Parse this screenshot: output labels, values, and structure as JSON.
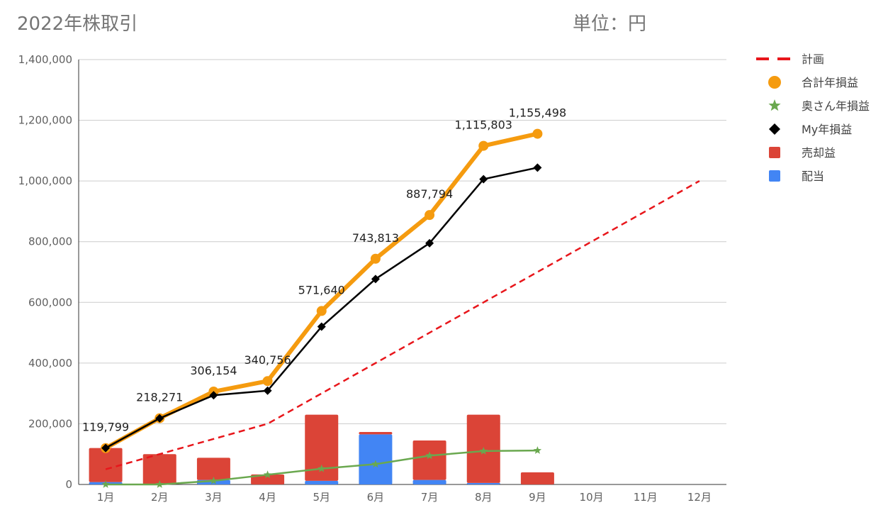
{
  "chart_data": {
    "type": "combo",
    "title": "2022年株取引",
    "subtitle": "単位：円",
    "categories": [
      "1月",
      "2月",
      "3月",
      "4月",
      "5月",
      "6月",
      "7月",
      "8月",
      "9月",
      "10月",
      "11月",
      "12月"
    ],
    "ylim": [
      0,
      1400000
    ],
    "yticks": [
      0,
      200000,
      400000,
      600000,
      800000,
      1000000,
      1200000,
      1400000
    ],
    "ytick_labels": [
      "0",
      "200,000",
      "400,000",
      "600,000",
      "800,000",
      "1,000,000",
      "1,200,000",
      "1,400,000"
    ],
    "grid": true,
    "legend_position": "right",
    "stacked_bars": [
      {
        "name": "配当",
        "color": "#4285f4",
        "values": [
          8000,
          0,
          15000,
          0,
          12000,
          165000,
          15000,
          5000,
          0,
          null,
          null,
          null
        ]
      },
      {
        "name": "売却益",
        "color": "#db4437",
        "values": [
          112000,
          100000,
          73000,
          33000,
          218000,
          8000,
          130000,
          225000,
          40000,
          null,
          null,
          null
        ]
      }
    ],
    "lines": [
      {
        "name": "計画",
        "color": "#e8161b",
        "style": "dashed",
        "values": [
          50000,
          100000,
          150000,
          200000,
          300000,
          400000,
          500000,
          600000,
          700000,
          800000,
          900000,
          1000000
        ]
      },
      {
        "name": "合計年損益",
        "color": "#f59b0f",
        "marker": "circle",
        "values": [
          119799,
          218271,
          306154,
          340756,
          571640,
          743813,
          887794,
          1115803,
          1155498,
          null,
          null,
          null
        ],
        "data_labels": [
          "119,799",
          "218,271",
          "306,154",
          "340,756",
          "571,640",
          "743,813",
          "887,794",
          "1,115,803",
          "1,155,498"
        ]
      },
      {
        "name": "奥さん年損益",
        "color": "#6aa84f",
        "marker": "star",
        "values": [
          0,
          0,
          12000,
          32000,
          52000,
          67000,
          95000,
          110000,
          112000,
          null,
          null,
          null
        ]
      },
      {
        "name": "My年損益",
        "color": "#000000",
        "marker": "diamond",
        "values": [
          120000,
          218000,
          294000,
          309000,
          520000,
          677000,
          795000,
          1006000,
          1044000,
          null,
          null,
          null
        ]
      }
    ],
    "legend": [
      {
        "name": "計画",
        "symbol": "dash",
        "color": "#e8161b"
      },
      {
        "name": "合計年損益",
        "symbol": "circle",
        "color": "#f59b0f"
      },
      {
        "name": "奥さん年損益",
        "symbol": "star",
        "color": "#6aa84f"
      },
      {
        "name": "My年損益",
        "symbol": "diamond",
        "color": "#000000"
      },
      {
        "name": "売却益",
        "symbol": "square",
        "color": "#db4437"
      },
      {
        "name": "配当",
        "symbol": "square",
        "color": "#4285f4"
      }
    ]
  }
}
